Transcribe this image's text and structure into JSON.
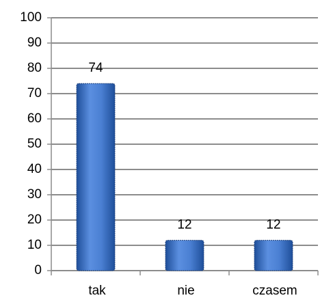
{
  "chart_data": {
    "type": "bar",
    "categories": [
      "tak",
      "nie",
      "czasem"
    ],
    "values": [
      74,
      12,
      12
    ],
    "color": "#3a6fc4",
    "ylim": [
      0,
      100
    ],
    "yticks": [
      0,
      10,
      20,
      30,
      40,
      50,
      60,
      70,
      80,
      90,
      100
    ],
    "grid": true
  }
}
